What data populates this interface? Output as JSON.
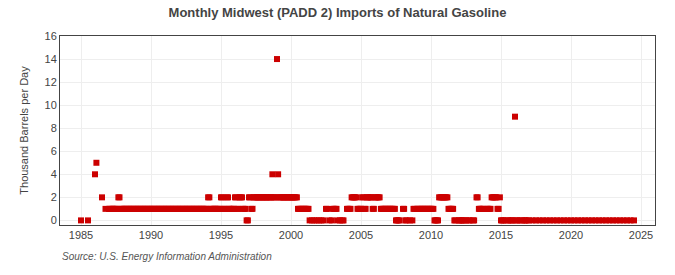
{
  "chart_data": {
    "type": "scatter",
    "title": "Monthly Midwest (PADD 2) Imports of Natural Gasoline",
    "ylabel": "Thousand Barrels per Day",
    "source": "Source: U.S. Energy Information Administration",
    "color": "#cc0000",
    "marker": "square",
    "grid": true,
    "xlim": [
      1983.5,
      2026
    ],
    "ylim": [
      -0.4,
      16
    ],
    "xticks": [
      1985,
      1990,
      1995,
      2000,
      2005,
      2010,
      2015,
      2020,
      2025
    ],
    "yticks": [
      0,
      2,
      4,
      6,
      8,
      10,
      12,
      14,
      16
    ],
    "x": [
      1985.0,
      1985.5,
      1986.0,
      1986.1,
      1986.5,
      1986.75,
      1987.0,
      1987.08,
      1987.17,
      1987.25,
      1987.33,
      1987.42,
      1987.5,
      1987.58,
      1987.67,
      1987.75,
      1987.83,
      1987.92,
      1988.0,
      1988.08,
      1988.17,
      1988.25,
      1988.33,
      1988.42,
      1988.5,
      1988.58,
      1988.67,
      1988.75,
      1988.83,
      1988.92,
      1989.0,
      1989.08,
      1989.17,
      1989.25,
      1989.33,
      1989.42,
      1989.5,
      1989.58,
      1989.67,
      1989.75,
      1989.83,
      1989.92,
      1990.0,
      1990.08,
      1990.17,
      1990.25,
      1990.33,
      1990.42,
      1990.5,
      1990.58,
      1990.67,
      1990.75,
      1990.83,
      1990.92,
      1991.0,
      1991.08,
      1991.17,
      1991.25,
      1991.33,
      1991.42,
      1991.5,
      1991.58,
      1991.67,
      1991.75,
      1991.83,
      1991.92,
      1992.0,
      1992.08,
      1992.17,
      1992.25,
      1992.33,
      1992.42,
      1992.5,
      1992.58,
      1992.67,
      1992.75,
      1992.83,
      1992.92,
      1993.0,
      1993.08,
      1993.17,
      1993.25,
      1993.33,
      1993.42,
      1993.5,
      1993.58,
      1993.67,
      1993.75,
      1993.83,
      1993.92,
      1994.0,
      1994.08,
      1994.17,
      1994.25,
      1994.33,
      1994.42,
      1994.5,
      1994.58,
      1994.67,
      1994.75,
      1994.83,
      1994.92,
      1995.0,
      1995.08,
      1995.17,
      1995.25,
      1995.33,
      1995.42,
      1995.5,
      1995.58,
      1995.67,
      1995.75,
      1995.83,
      1995.92,
      1996.0,
      1996.08,
      1996.17,
      1996.25,
      1996.33,
      1996.42,
      1996.5,
      1996.58,
      1996.67,
      1996.75,
      1996.83,
      1996.92,
      1997.0,
      1997.08,
      1997.17,
      1997.25,
      1997.33,
      1997.42,
      1997.5,
      1997.58,
      1997.67,
      1997.75,
      1997.83,
      1997.92,
      1998.0,
      1998.08,
      1998.17,
      1998.25,
      1998.33,
      1998.42,
      1998.5,
      1998.58,
      1998.67,
      1998.75,
      1998.83,
      1998.92,
      1999.0,
      1999.08,
      1999.17,
      1999.25,
      1999.33,
      1999.42,
      1999.5,
      1999.58,
      1999.67,
      1999.75,
      1999.83,
      1999.92,
      2000.0,
      2000.08,
      2000.17,
      2000.25,
      2000.33,
      2000.42,
      2000.5,
      2000.58,
      2000.67,
      2000.75,
      2000.83,
      2000.92,
      2001.0,
      2001.08,
      2001.17,
      2001.25,
      2001.33,
      2001.5,
      2001.67,
      2001.83,
      2002.0,
      2002.17,
      2002.33,
      2002.5,
      2002.58,
      2002.75,
      2002.92,
      2003.0,
      2003.08,
      2003.17,
      2003.25,
      2003.33,
      2003.5,
      2003.67,
      2003.75,
      2004.0,
      2004.08,
      2004.17,
      2004.25,
      2004.33,
      2004.42,
      2004.5,
      2004.58,
      2004.67,
      2004.75,
      2004.83,
      2004.92,
      2005.0,
      2005.08,
      2005.17,
      2005.25,
      2005.33,
      2005.42,
      2005.5,
      2005.58,
      2005.67,
      2005.75,
      2005.83,
      2005.92,
      2006.0,
      2006.08,
      2006.17,
      2006.25,
      2006.33,
      2006.42,
      2006.5,
      2006.58,
      2006.67,
      2006.75,
      2006.83,
      2006.92,
      2007.0,
      2007.08,
      2007.17,
      2007.25,
      2007.33,
      2007.42,
      2007.5,
      2007.58,
      2007.67,
      2007.75,
      2008.0,
      2008.08,
      2008.17,
      2008.25,
      2008.5,
      2008.67,
      2008.75,
      2008.83,
      2009.0,
      2009.08,
      2009.17,
      2009.25,
      2009.33,
      2009.42,
      2009.5,
      2009.58,
      2009.67,
      2009.75,
      2009.83,
      2009.92,
      2010.0,
      2010.08,
      2010.17,
      2010.25,
      2010.33,
      2010.42,
      2010.5,
      2010.58,
      2010.67,
      2010.75,
      2010.83,
      2010.92,
      2011.0,
      2011.08,
      2011.17,
      2011.25,
      2011.33,
      2011.42,
      2011.5,
      2011.58,
      2011.67,
      2011.75,
      2012.0,
      2012.08,
      2012.17,
      2012.25,
      2012.33,
      2012.5,
      2012.67,
      2012.75,
      2013.0,
      2013.08,
      2013.25,
      2013.33,
      2013.42,
      2013.5,
      2013.58,
      2013.67,
      2013.75,
      2014.0,
      2014.08,
      2014.17,
      2014.25,
      2014.33,
      2014.42,
      2014.5,
      2014.58,
      2014.67,
      2014.75,
      2014.83,
      2014.92,
      2015.0,
      2015.08,
      2015.17,
      2015.33,
      2015.5,
      2015.67,
      2015.75,
      2015.83,
      2016.0,
      2016.08,
      2016.17,
      2016.33,
      2016.5,
      2016.67,
      2016.75,
      2016.83,
      2017.0,
      2017.25,
      2017.5,
      2017.75,
      2018.0,
      2018.25,
      2018.5,
      2018.75,
      2019.0,
      2019.25,
      2019.5,
      2019.75,
      2020.0,
      2020.25,
      2020.5,
      2020.75,
      2021.0,
      2021.25,
      2021.5,
      2021.75,
      2022.0,
      2022.25,
      2022.5,
      2022.75,
      2023.0,
      2023.25,
      2023.5,
      2023.75,
      2024.0,
      2024.25,
      2024.5
    ],
    "values": [
      0,
      0,
      4,
      5,
      2,
      1,
      1,
      1,
      1,
      1,
      1,
      1,
      1,
      1,
      2,
      2,
      1,
      1,
      1,
      1,
      1,
      1,
      1,
      1,
      1,
      1,
      1,
      1,
      1,
      1,
      1,
      1,
      1,
      1,
      1,
      1,
      1,
      1,
      1,
      1,
      1,
      1,
      1,
      1,
      1,
      1,
      1,
      1,
      1,
      1,
      1,
      1,
      1,
      1,
      1,
      1,
      1,
      1,
      1,
      1,
      1,
      1,
      1,
      1,
      1,
      1,
      1,
      1,
      1,
      1,
      1,
      1,
      1,
      1,
      1,
      1,
      1,
      1,
      1,
      1,
      1,
      1,
      1,
      1,
      1,
      1,
      1,
      1,
      1,
      1,
      1,
      2,
      2,
      1,
      1,
      1,
      1,
      1,
      1,
      1,
      1,
      1,
      2,
      2,
      1,
      1,
      1,
      2,
      2,
      1,
      1,
      1,
      1,
      1,
      2,
      2,
      1,
      1,
      2,
      2,
      2,
      1,
      1,
      1,
      0,
      0,
      2,
      2,
      1,
      1,
      2,
      2,
      2,
      2,
      2,
      2,
      2,
      2,
      2,
      2,
      2,
      2,
      2,
      2,
      2,
      2,
      4,
      2,
      2,
      2,
      14,
      4,
      2,
      2,
      2,
      2,
      2,
      2,
      2,
      2,
      2,
      2,
      2,
      2,
      2,
      2,
      2,
      2,
      1,
      1,
      1,
      1,
      1,
      1,
      1,
      1,
      1,
      1,
      0,
      0,
      0,
      0,
      0,
      0,
      0,
      1,
      1,
      0,
      0,
      1,
      1,
      1,
      1,
      0,
      0,
      0,
      0,
      1,
      1,
      1,
      1,
      2,
      2,
      2,
      2,
      2,
      1,
      1,
      1,
      1,
      2,
      2,
      1,
      1,
      2,
      2,
      2,
      2,
      2,
      1,
      1,
      2,
      2,
      2,
      2,
      2,
      1,
      1,
      1,
      1,
      1,
      1,
      1,
      1,
      1,
      1,
      1,
      1,
      1,
      0,
      0,
      0,
      0,
      1,
      1,
      0,
      0,
      0,
      0,
      1,
      1,
      1,
      1,
      1,
      1,
      1,
      1,
      1,
      1,
      1,
      1,
      1,
      1,
      1,
      1,
      1,
      0,
      0,
      0,
      0,
      2,
      2,
      2,
      2,
      2,
      2,
      2,
      2,
      1,
      1,
      1,
      1,
      1,
      0,
      0,
      0,
      0,
      0,
      0,
      0,
      0,
      0,
      0,
      0,
      0,
      2,
      2,
      1,
      1,
      1,
      1,
      1,
      1,
      1,
      1,
      1,
      2,
      2,
      2,
      2,
      2,
      1,
      1,
      2,
      0,
      0,
      0,
      0,
      0,
      0,
      0,
      0,
      9,
      0,
      0,
      0,
      0,
      0,
      0,
      0,
      0,
      0,
      0,
      0,
      0,
      0,
      0,
      0,
      0,
      0,
      0,
      0,
      0,
      0,
      0,
      0,
      0,
      0,
      0,
      0,
      0,
      0,
      0,
      0,
      0,
      0,
      0,
      0,
      0,
      0,
      0
    ]
  }
}
